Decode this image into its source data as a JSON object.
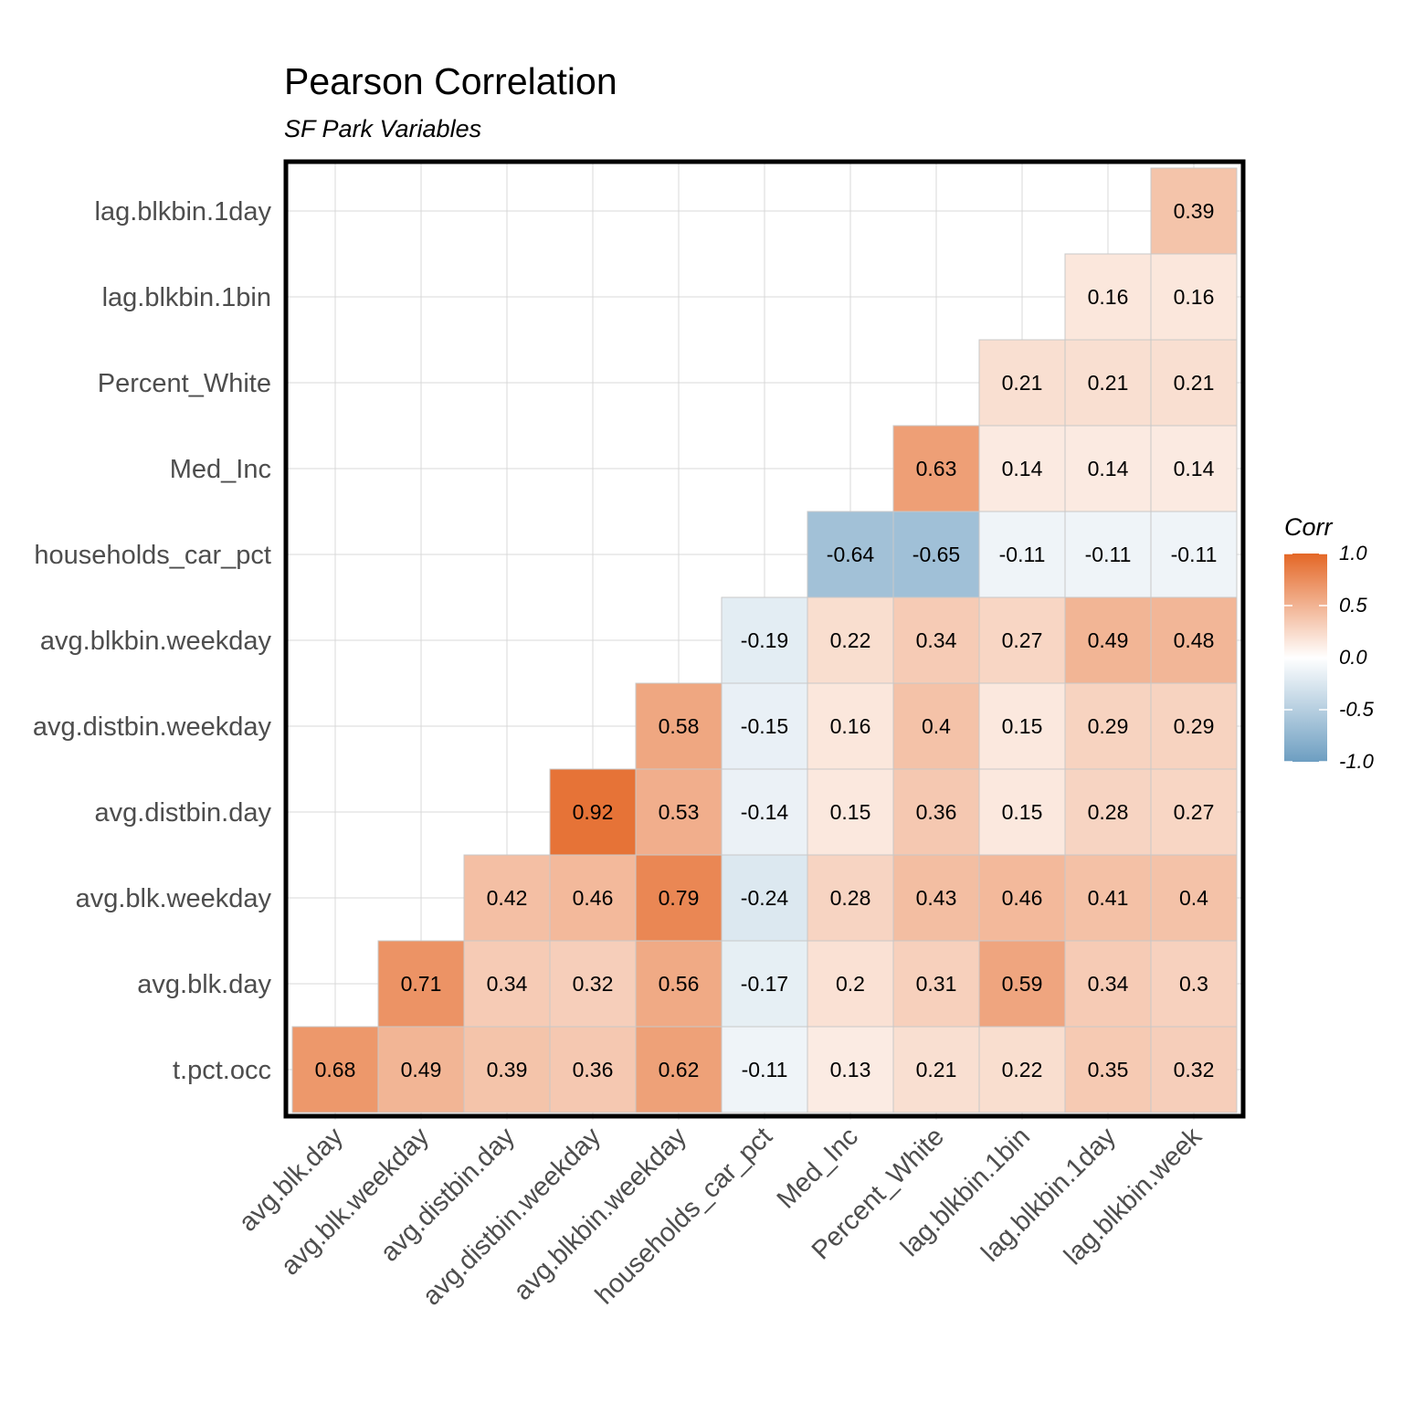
{
  "chart_data": {
    "type": "heatmap",
    "title": "Pearson Correlation",
    "subtitle": "SF Park Variables",
    "legend": {
      "title": "Corr",
      "ticks": [
        "1.0",
        "0.5",
        "0.0",
        "-0.5",
        "-1.0"
      ],
      "tick_values": [
        1.0,
        0.5,
        0.0,
        -0.5,
        -1.0
      ],
      "low_color": "#6d9ec1",
      "mid_color": "#ffffff",
      "high_color": "#e46726"
    },
    "x_labels": [
      "avg.blk.day",
      "avg.blk.weekday",
      "avg.distbin.day",
      "avg.distbin.weekday",
      "avg.blkbin.weekday",
      "households_car_pct",
      "Med_Inc",
      "Percent_White",
      "lag.blkbin.1bin",
      "lag.blkbin.1day",
      "lag.blkbin.week"
    ],
    "y_labels": [
      "t.pct.occ",
      "avg.blk.day",
      "avg.blk.weekday",
      "avg.distbin.day",
      "avg.distbin.weekday",
      "avg.blkbin.weekday",
      "households_car_pct",
      "Med_Inc",
      "Percent_White",
      "lag.blkbin.1bin",
      "lag.blkbin.1day"
    ],
    "cells": [
      {
        "row": "t.pct.occ",
        "values": [
          "0.68",
          "0.49",
          "0.39",
          "0.36",
          "0.62",
          "-0.11",
          "0.13",
          "0.21",
          "0.22",
          "0.35",
          "0.32"
        ]
      },
      {
        "row": "avg.blk.day",
        "values": [
          null,
          "0.71",
          "0.34",
          "0.32",
          "0.56",
          "-0.17",
          "0.2",
          "0.31",
          "0.59",
          "0.34",
          "0.3"
        ]
      },
      {
        "row": "avg.blk.weekday",
        "values": [
          null,
          null,
          "0.42",
          "0.46",
          "0.79",
          "-0.24",
          "0.28",
          "0.43",
          "0.46",
          "0.41",
          "0.4"
        ]
      },
      {
        "row": "avg.distbin.day",
        "values": [
          null,
          null,
          null,
          "0.92",
          "0.53",
          "-0.14",
          "0.15",
          "0.36",
          "0.15",
          "0.28",
          "0.27"
        ]
      },
      {
        "row": "avg.distbin.weekday",
        "values": [
          null,
          null,
          null,
          null,
          "0.58",
          "-0.15",
          "0.16",
          "0.4",
          "0.15",
          "0.29",
          "0.29"
        ]
      },
      {
        "row": "avg.blkbin.weekday",
        "values": [
          null,
          null,
          null,
          null,
          null,
          "-0.19",
          "0.22",
          "0.34",
          "0.27",
          "0.49",
          "0.48"
        ]
      },
      {
        "row": "households_car_pct",
        "values": [
          null,
          null,
          null,
          null,
          null,
          null,
          "-0.64",
          "-0.65",
          "-0.11",
          "-0.11",
          "-0.11"
        ]
      },
      {
        "row": "Med_Inc",
        "values": [
          null,
          null,
          null,
          null,
          null,
          null,
          null,
          "0.63",
          "0.14",
          "0.14",
          "0.14"
        ]
      },
      {
        "row": "Percent_White",
        "values": [
          null,
          null,
          null,
          null,
          null,
          null,
          null,
          null,
          "0.21",
          "0.21",
          "0.21"
        ]
      },
      {
        "row": "lag.blkbin.1bin",
        "values": [
          null,
          null,
          null,
          null,
          null,
          null,
          null,
          null,
          null,
          "0.16",
          "0.16"
        ]
      },
      {
        "row": "lag.blkbin.1day",
        "values": [
          null,
          null,
          null,
          null,
          null,
          null,
          null,
          null,
          null,
          null,
          "0.39"
        ]
      }
    ],
    "grid": true
  }
}
